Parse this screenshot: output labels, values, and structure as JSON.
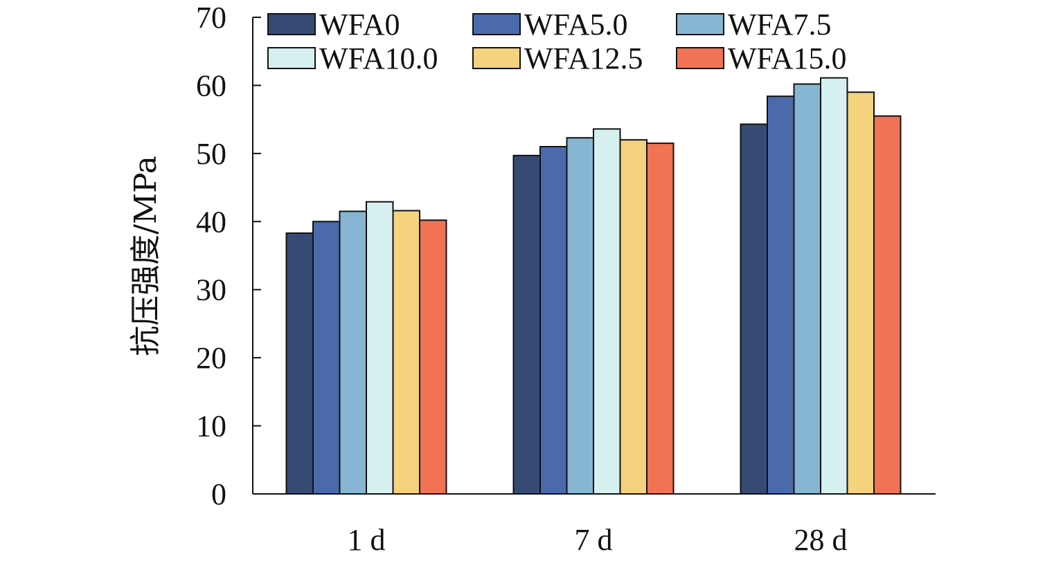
{
  "chart_data": {
    "type": "bar",
    "title": "",
    "xlabel": "",
    "ylabel": "抗压强度/MPa",
    "ylim": [
      0,
      70
    ],
    "yticks": [
      0,
      10,
      20,
      30,
      40,
      50,
      60,
      70
    ],
    "categories": [
      "1 d",
      "7 d",
      "28 d"
    ],
    "legend_position": "top",
    "grid": false,
    "series": [
      {
        "name": "WFA0",
        "color": "#374a75",
        "values": [
          38.3,
          49.7,
          54.3
        ]
      },
      {
        "name": "WFA5.0",
        "color": "#4a6aac",
        "values": [
          40.0,
          51.0,
          58.4
        ]
      },
      {
        "name": "WFA7.5",
        "color": "#87b6d2",
        "values": [
          41.5,
          52.3,
          60.2
        ]
      },
      {
        "name": "WFA10.0",
        "color": "#d6f0f0",
        "values": [
          42.9,
          53.6,
          61.1
        ]
      },
      {
        "name": "WFA12.5",
        "color": "#f4d27e",
        "values": [
          41.6,
          52.0,
          59.0
        ]
      },
      {
        "name": "WFA15.0",
        "color": "#f27353",
        "values": [
          40.2,
          51.5,
          55.5
        ]
      }
    ]
  }
}
